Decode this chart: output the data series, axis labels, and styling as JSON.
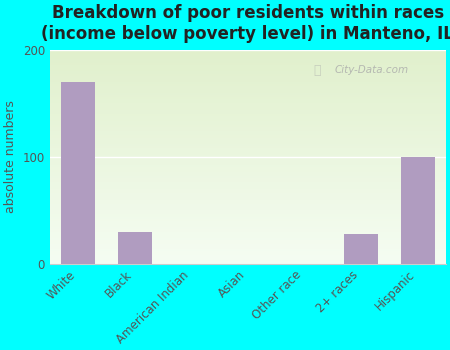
{
  "title": "Breakdown of poor residents within races\n(income below poverty level) in Manteno, IL",
  "categories": [
    "White",
    "Black",
    "American Indian",
    "Asian",
    "Other race",
    "2+ races",
    "Hispanic"
  ],
  "values": [
    170,
    30,
    0,
    0,
    0,
    28,
    100
  ],
  "bar_color": "#b09cc0",
  "ylabel": "absolute numbers",
  "ylim": [
    0,
    200
  ],
  "yticks": [
    0,
    100,
    200
  ],
  "background_color": "#00ffff",
  "title_fontsize": 12,
  "axis_label_fontsize": 9,
  "tick_fontsize": 8.5
}
